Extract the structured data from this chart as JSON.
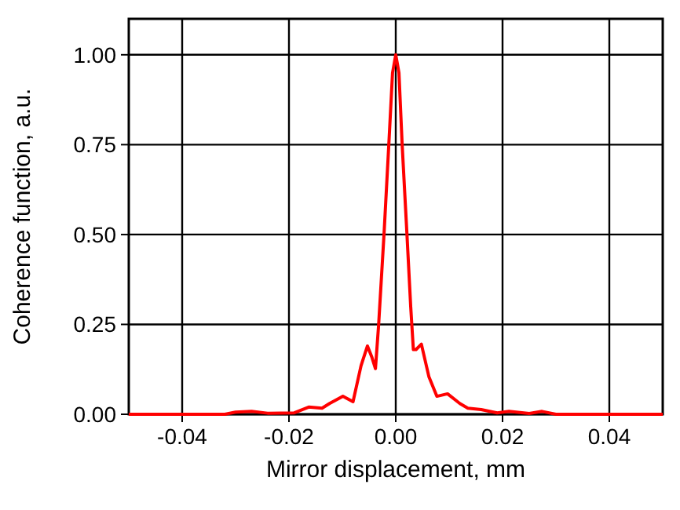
{
  "chart_data": {
    "type": "line",
    "xlabel": "Mirror displacement, mm",
    "ylabel": "Coherence function, a.u.",
    "xlim": [
      -0.05,
      0.05
    ],
    "ylim": [
      0,
      1.1
    ],
    "xticks": [
      -0.04,
      -0.02,
      {
        "value": 0,
        "label": "0.00"
      },
      0.02,
      0.04
    ],
    "yticks": [
      {
        "value": 0,
        "label": "0.00"
      },
      0.25,
      {
        "value": 0.5,
        "label": "0.50"
      },
      0.75,
      {
        "value": 1,
        "label": "1.00"
      }
    ],
    "grid": true,
    "marker": "none",
    "line_style": "solid",
    "series": [
      {
        "color": "#ff0000",
        "x": [
          -0.05,
          -0.032,
          -0.03,
          -0.027,
          -0.024,
          -0.019,
          -0.0163,
          -0.0138,
          -0.0124,
          -0.0099,
          -0.008,
          -0.0065,
          -0.0053,
          -0.0045,
          -0.0038,
          -0.0032,
          -0.0022,
          -0.0013,
          -0.0006,
          0,
          0.0006,
          0.0012,
          0.0021,
          0.0028,
          0.0033,
          0.0038,
          0.0048,
          0.0062,
          0.0077,
          0.0097,
          0.012,
          0.0135,
          0.016,
          0.019,
          0.0212,
          0.025,
          0.0274,
          0.03,
          0.05
        ],
        "values": [
          0,
          0,
          0.006,
          0.008,
          0.003,
          0.004,
          0.02,
          0.017,
          0.03,
          0.05,
          0.035,
          0.135,
          0.19,
          0.16,
          0.127,
          0.25,
          0.5,
          0.75,
          0.95,
          1.0,
          0.95,
          0.75,
          0.5,
          0.3,
          0.18,
          0.18,
          0.195,
          0.105,
          0.05,
          0.057,
          0.03,
          0.017,
          0.013,
          0.004,
          0.008,
          0.002,
          0.008,
          0,
          0
        ]
      }
    ]
  }
}
